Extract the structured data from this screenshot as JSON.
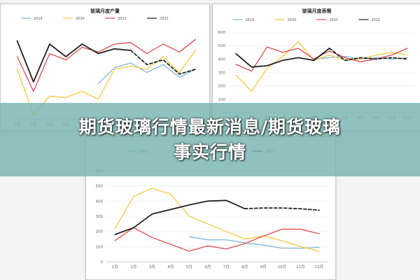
{
  "banner": {
    "line1": "期货玻璃行情最新消息/期货玻璃",
    "line2": "事实行情"
  },
  "colors": {
    "s2019": "#7fb3d9",
    "s2020": "#f5c842",
    "s2021": "#e0494d",
    "s2022": "#222222"
  },
  "chart_data": [
    {
      "id": "chart-production",
      "type": "line",
      "title": "玻璃月度产量",
      "categories": [
        "1月",
        "2月",
        "3月",
        "4月",
        "5月",
        "6月",
        "7月",
        "8月",
        "9月",
        "10月",
        "11月",
        "12月"
      ],
      "ylim": [
        0,
        600
      ],
      "yticks": [],
      "xticks": [
        "1月",
        "2月",
        "3月",
        "4月",
        "5月",
        "6月",
        "7月",
        "8月",
        "9月",
        "10月",
        "11月",
        "12月"
      ],
      "series": [
        {
          "name": "2019",
          "color": "#7fb3d9",
          "dash": false,
          "values": [
            null,
            null,
            null,
            null,
            null,
            230,
            330,
            360,
            300,
            350,
            270,
            320
          ]
        },
        {
          "name": "2020",
          "color": "#f5c842",
          "dash": false,
          "values": [
            320,
            30,
            150,
            140,
            180,
            130,
            320,
            340,
            320,
            400,
            300,
            440
          ]
        },
        {
          "name": "2021",
          "color": "#e0494d",
          "dash": false,
          "values": [
            400,
            180,
            420,
            380,
            460,
            430,
            480,
            490,
            420,
            480,
            430,
            510
          ]
        },
        {
          "name": "2022",
          "color": "#222222",
          "dash": false,
          "values": [
            500,
            240,
            480,
            400,
            480,
            420,
            450,
            440,
            null,
            null,
            null,
            null
          ]
        },
        {
          "name": "2022-forecast",
          "color": "#222222",
          "dash": true,
          "values": [
            null,
            null,
            null,
            null,
            null,
            null,
            null,
            440,
            350,
            380,
            290,
            320
          ]
        }
      ]
    },
    {
      "id": "chart-demand",
      "type": "line",
      "title": "玻璃月度表需",
      "categories": [
        "1月",
        "2月",
        "3月",
        "4月",
        "5月",
        "6月",
        "7月",
        "8月",
        "9月",
        "10月",
        "11月",
        "12月"
      ],
      "ylim": [
        0,
        600
      ],
      "yticks": [
        "0",
        "100",
        "200",
        "300",
        "400",
        "500",
        "600"
      ],
      "xticks": [
        "1月",
        "2月",
        "3月",
        "4月",
        "5月",
        "6月",
        "7月",
        "8月",
        "9月",
        "10月",
        "11月",
        "12月"
      ],
      "series": [
        {
          "name": "2019",
          "color": "#7fb3d9",
          "dash": false,
          "values": [
            null,
            null,
            null,
            null,
            null,
            400,
            410,
            420,
            400,
            410,
            400,
            410
          ]
        },
        {
          "name": "2020",
          "color": "#f5c842",
          "dash": false,
          "values": [
            280,
            160,
            330,
            420,
            530,
            390,
            430,
            390,
            400,
            430,
            450,
            430
          ]
        },
        {
          "name": "2021",
          "color": "#e0494d",
          "dash": false,
          "values": [
            360,
            310,
            490,
            450,
            480,
            400,
            460,
            410,
            380,
            400,
            430,
            480
          ]
        },
        {
          "name": "2022",
          "color": "#222222",
          "dash": false,
          "values": [
            440,
            340,
            350,
            390,
            410,
            390,
            480,
            null,
            null,
            null,
            null,
            null
          ]
        },
        {
          "name": "2022-forecast",
          "color": "#222222",
          "dash": true,
          "values": [
            null,
            null,
            null,
            null,
            null,
            null,
            480,
            390,
            410,
            400,
            410,
            400
          ]
        }
      ]
    },
    {
      "id": "chart-inventory",
      "type": "line",
      "title": "",
      "categories": [
        "1月",
        "2月",
        "3月",
        "4月",
        "5月",
        "6月",
        "7月",
        "8月",
        "9月",
        "10月",
        "11月",
        "12月"
      ],
      "ylim": [
        0,
        600
      ],
      "yticks": [
        "0",
        "100",
        "200",
        "300",
        "400",
        "500",
        "600"
      ],
      "xticks": [
        "1月",
        "2月",
        "3月",
        "4月",
        "5月",
        "6月",
        "7月",
        "8月",
        "9月",
        "10月",
        "11月",
        "12月"
      ],
      "series": [
        {
          "name": "2019",
          "color": "#7fb3d9",
          "dash": false,
          "values": [
            null,
            null,
            null,
            null,
            165,
            145,
            145,
            125,
            110,
            90,
            90,
            95
          ]
        },
        {
          "name": "2020",
          "color": "#f5c842",
          "dash": false,
          "values": [
            220,
            430,
            485,
            445,
            300,
            250,
            200,
            150,
            170,
            140,
            100,
            70
          ]
        },
        {
          "name": "2021",
          "color": "#e0494d",
          "dash": false,
          "values": [
            140,
            225,
            160,
            115,
            70,
            105,
            85,
            120,
            170,
            215,
            215,
            185
          ]
        },
        {
          "name": "2022",
          "color": "#222222",
          "dash": false,
          "values": [
            180,
            225,
            315,
            345,
            375,
            400,
            405,
            350,
            null,
            null,
            null,
            null
          ]
        },
        {
          "name": "2022-forecast",
          "color": "#222222",
          "dash": true,
          "values": [
            null,
            null,
            null,
            null,
            null,
            null,
            null,
            350,
            355,
            355,
            350,
            340
          ]
        }
      ]
    }
  ]
}
